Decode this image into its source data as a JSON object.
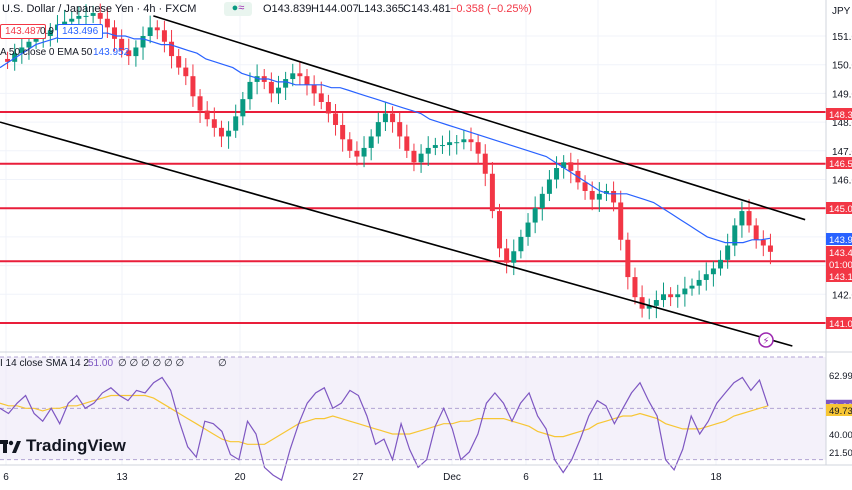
{
  "header": {
    "symbol": "U.S. Dollar / Japanese Yen · 4h · FXCM",
    "ohlc_open": "O143.839",
    "ohlc_high": "H144.007",
    "ohlc_low": "L143.365",
    "ohlc_close": "C143.481",
    "change": "−0.358 (−0.25%)",
    "sell_price": "143.487",
    "spread": "0.9",
    "buy_price": "143.496",
    "ema_label": "A 50 close 0 EMA 50",
    "ema_value": "143.952",
    "currency": "JPY"
  },
  "rsi_header": {
    "label": "I 14 close SMA 14 2",
    "value": "51.00",
    "extra": "∅ ∅ ∅ ∅ ∅ ∅",
    "extra2": "∅"
  },
  "branding": {
    "logo_text": "TradingView"
  },
  "colors": {
    "up": "#089981",
    "down": "#f23645",
    "ema": "#2962ff",
    "hline": "#e91e3a",
    "trend": "#000000",
    "rsi": "#7e57c2",
    "rsi_ma": "#f7c634",
    "accent_magenta": "#9c27b0"
  },
  "chart_data": [
    {
      "type": "line",
      "title": "U.S. Dollar / Japanese Yen · 4h · FXCM",
      "ylim": [
        141.0,
        151.8
      ],
      "y_ticks": [
        "151.0",
        "150.0",
        "149.0",
        "148.0",
        "147.0",
        "146.0",
        "145.0",
        "144.0",
        "143.0",
        "142.0",
        "141.0"
      ],
      "x_ticks": [
        "6",
        "13",
        "20",
        "27",
        "Dec",
        "6",
        "11",
        "18"
      ],
      "price_tags": [
        {
          "label": "148.3",
          "color": "#f23645"
        },
        {
          "label": "146.5",
          "color": "#f23645"
        },
        {
          "label": "145.0",
          "color": "#f23645"
        },
        {
          "label": "143.9",
          "color": "#2962ff"
        },
        {
          "label": "143.4",
          "color": "#f23645"
        },
        {
          "label": "01:00",
          "color": "#f23645"
        },
        {
          "label": "143.1",
          "color": "#f23645"
        },
        {
          "label": "141.0",
          "color": "#f23645"
        }
      ],
      "horizontal_levels": [
        148.35,
        146.55,
        145.0,
        143.15,
        141.0
      ],
      "close_series": [
        150.1,
        150.4,
        150.6,
        150.8,
        150.9,
        151.0,
        151.2,
        151.4,
        151.5,
        151.6,
        151.7,
        151.7,
        151.8,
        151.6,
        151.3,
        150.9,
        150.5,
        150.3,
        150.6,
        151.0,
        151.3,
        151.2,
        150.8,
        150.3,
        149.9,
        149.6,
        148.9,
        148.4,
        148.1,
        147.8,
        147.5,
        147.7,
        148.2,
        148.8,
        149.4,
        149.6,
        149.4,
        149.0,
        149.2,
        149.5,
        149.7,
        149.6,
        149.3,
        149.0,
        148.7,
        148.3,
        147.9,
        147.4,
        147.0,
        146.8,
        147.1,
        147.5,
        148.0,
        148.3,
        148.0,
        147.5,
        147.0,
        146.6,
        146.9,
        147.1,
        147.2,
        147.2,
        147.3,
        147.3,
        147.4,
        147.3,
        146.9,
        146.2,
        144.9,
        143.6,
        143.1,
        143.5,
        144.0,
        144.5,
        145.0,
        145.5,
        146.0,
        146.4,
        146.6,
        146.3,
        145.9,
        145.6,
        145.3,
        145.5,
        145.6,
        145.2,
        143.9,
        142.6,
        141.9,
        141.5,
        141.6,
        141.8,
        142.0,
        141.9,
        142.0,
        142.2,
        142.3,
        142.5,
        142.7,
        142.9,
        143.2,
        143.7,
        144.4,
        144.9,
        144.4,
        143.9,
        143.7,
        143.48
      ],
      "ema50_series": [
        149.9,
        150.1,
        150.3,
        150.5,
        150.7,
        150.8,
        150.9,
        151.0,
        151.0,
        151.1,
        151.1,
        151.1,
        151.1,
        151.0,
        151.0,
        150.9,
        150.9,
        150.8,
        150.7,
        150.7,
        150.6,
        150.5,
        150.4,
        150.2,
        150.1,
        150.0,
        149.9,
        149.7,
        149.6,
        149.5,
        149.5,
        149.4,
        149.4,
        149.3,
        149.3,
        149.3,
        149.3,
        149.2,
        149.2,
        149.1,
        149.0,
        148.9,
        148.8,
        148.7,
        148.6,
        148.5,
        148.4,
        148.3,
        148.1,
        148.0,
        147.9,
        147.8,
        147.7,
        147.6,
        147.5,
        147.4,
        147.3,
        147.2,
        147.1,
        147.0,
        146.9,
        146.8,
        146.6,
        146.4,
        146.2,
        146.0,
        145.8,
        145.6,
        145.5,
        145.5,
        145.5,
        145.4,
        145.3,
        145.2,
        145.0,
        144.8,
        144.6,
        144.4,
        144.2,
        144.0,
        143.9,
        143.8,
        143.8,
        143.8,
        143.9,
        143.9,
        143.95
      ],
      "trendlines": [
        {
          "x1": 0.18,
          "y1": 151.7,
          "x2": 0.945,
          "y2": 144.6
        },
        {
          "x1": 0.0,
          "y1": 148.0,
          "x2": 0.93,
          "y2": 140.2
        }
      ]
    },
    {
      "type": "line",
      "title": "RSI 14",
      "ylim": [
        21.5,
        70
      ],
      "y_ticks": [
        "62.99",
        "51.00",
        "49.73",
        "40.00",
        "21.50"
      ],
      "rsi_series": [
        50,
        48,
        52,
        55,
        48,
        45,
        50,
        44,
        52,
        55,
        50,
        52,
        56,
        58,
        55,
        53,
        57,
        56,
        60,
        62,
        57,
        45,
        35,
        31,
        45,
        44,
        41,
        32,
        30,
        45,
        40,
        27,
        24,
        22,
        34,
        44,
        52,
        56,
        58,
        50,
        52,
        57,
        55,
        47,
        36,
        38,
        30,
        44,
        34,
        27,
        30,
        43,
        50,
        42,
        30,
        33,
        40,
        52,
        56,
        52,
        45,
        52,
        56,
        47,
        42,
        30,
        25,
        30,
        38,
        47,
        53,
        51,
        44,
        50,
        56,
        60,
        53,
        47,
        30,
        26,
        34,
        47,
        40,
        45,
        52,
        56,
        60,
        62,
        57,
        61,
        51
      ],
      "rsi_ma_series": [
        52,
        51,
        51,
        50,
        50,
        49,
        50,
        50,
        51,
        51,
        52,
        53,
        54,
        55,
        55,
        55,
        55,
        55,
        54,
        52,
        50,
        48,
        46,
        44,
        42,
        40,
        38,
        37,
        37,
        36,
        36,
        36,
        38,
        40,
        42,
        44,
        45,
        46,
        46,
        47,
        46,
        45,
        44,
        43,
        42,
        41,
        40,
        40,
        40,
        41,
        42,
        43,
        44,
        44,
        45,
        45,
        46,
        46,
        46,
        46,
        45,
        44,
        43,
        41,
        40,
        39,
        39,
        40,
        41,
        42,
        44,
        45,
        46,
        47,
        47,
        48,
        47,
        46,
        44,
        43,
        42,
        42,
        42,
        43,
        44,
        45,
        47,
        48,
        49,
        50,
        51
      ]
    }
  ]
}
